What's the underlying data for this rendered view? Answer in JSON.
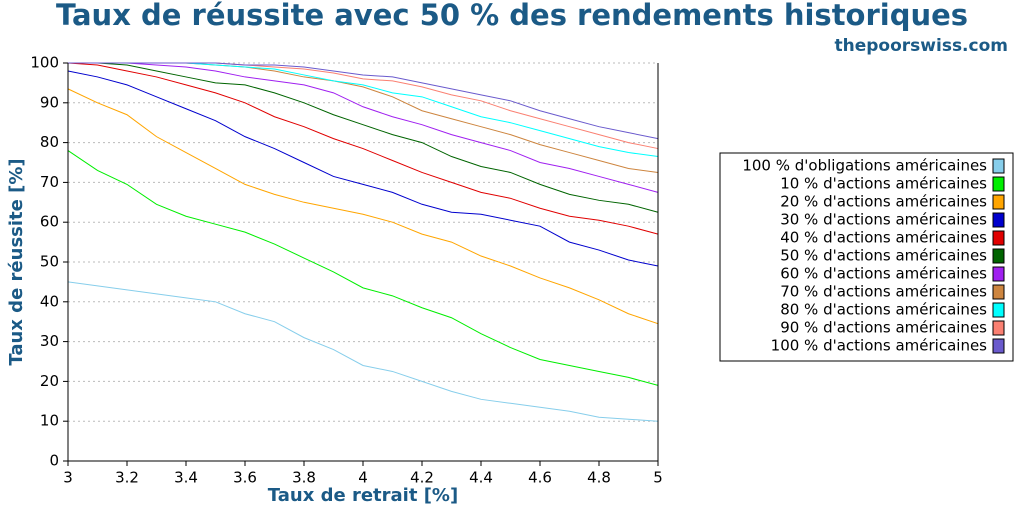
{
  "chart_data": {
    "type": "line",
    "title": "Taux de réussite avec 50 % des rendements historiques",
    "subtitle": "thepoorswiss.com",
    "x_label": "Taux de retrait [%]",
    "y_label": "Taux de réussite [%]",
    "x": [
      3,
      3.1,
      3.2,
      3.3,
      3.4,
      3.5,
      3.6,
      3.7,
      3.8,
      3.9,
      4,
      4.1,
      4.2,
      4.3,
      4.4,
      4.5,
      4.6,
      4.7,
      4.8,
      4.9,
      5
    ],
    "xlim": [
      3,
      5
    ],
    "xticks": [
      3,
      3.2,
      3.4,
      3.6,
      3.8,
      4,
      4.2,
      4.4,
      4.6,
      4.8,
      5
    ],
    "ylim": [
      0,
      100
    ],
    "yticks": [
      0,
      10,
      20,
      30,
      40,
      50,
      60,
      70,
      80,
      90,
      100
    ],
    "grid": true,
    "legend": "right",
    "series": [
      {
        "name": "100 % d'obligations américaines",
        "color": "#87ceeb",
        "values": [
          45,
          44,
          43,
          42,
          41,
          40,
          37,
          35,
          31,
          28,
          24,
          22.5,
          20,
          17.5,
          15.5,
          14.5,
          13.5,
          12.5,
          11,
          10.5,
          10
        ]
      },
      {
        "name": "10 % d'actions américaines",
        "color": "#00ee00",
        "values": [
          78,
          73,
          69.5,
          64.5,
          61.5,
          59.5,
          57.5,
          54.5,
          51,
          47.5,
          43.5,
          41.5,
          38.5,
          36,
          32,
          28.5,
          25.5,
          24,
          22.5,
          21,
          19
        ]
      },
      {
        "name": "20 % d'actions américaines",
        "color": "#ffa500",
        "values": [
          93.5,
          90,
          87,
          81.5,
          77.5,
          73.5,
          69.5,
          67,
          65,
          63.5,
          62,
          60,
          57,
          55,
          51.5,
          49,
          46,
          43.5,
          40.5,
          37,
          34.5
        ]
      },
      {
        "name": "30 % d'actions américaines",
        "color": "#0000cd",
        "values": [
          98,
          96.5,
          94.5,
          91.5,
          88.5,
          85.5,
          81.5,
          78.5,
          75,
          71.5,
          69.5,
          67.5,
          64.5,
          62.5,
          62,
          60.5,
          59,
          55,
          53,
          50.5,
          49
        ]
      },
      {
        "name": "40 % d'actions américaines",
        "color": "#e00000",
        "values": [
          100,
          99.5,
          98,
          96.5,
          94.5,
          92.5,
          90,
          86.5,
          84,
          81,
          78.5,
          75.5,
          72.5,
          70,
          67.5,
          66,
          63.5,
          61.5,
          60.5,
          59,
          57
        ]
      },
      {
        "name": "50 % d'actions américaines",
        "color": "#006400",
        "values": [
          100,
          100,
          99.5,
          98,
          96.5,
          95,
          94.5,
          92.5,
          90,
          87,
          84.5,
          82,
          80,
          76.5,
          74,
          72.5,
          69.5,
          67,
          65.5,
          64.5,
          62.5
        ]
      },
      {
        "name": "60 % d'actions américaines",
        "color": "#a020f0",
        "values": [
          100,
          100,
          100,
          99.5,
          99,
          98,
          96.5,
          95.5,
          94.5,
          92.5,
          89,
          86.5,
          84.5,
          82,
          80,
          78,
          75,
          73.5,
          71.5,
          69.5,
          67.5
        ]
      },
      {
        "name": "70 % d'actions américaines",
        "color": "#cd853f",
        "values": [
          100,
          100,
          100,
          100,
          100,
          99.5,
          99,
          98,
          96.5,
          95.5,
          94,
          91.5,
          88,
          86,
          84,
          82,
          79.5,
          77.5,
          75.5,
          73.5,
          72.5
        ]
      },
      {
        "name": "80 % d'actions américaines",
        "color": "#00ffff",
        "values": [
          100,
          100,
          100,
          100,
          100,
          99.5,
          99,
          98.5,
          97,
          95.5,
          94.5,
          92.5,
          91.5,
          89,
          86.5,
          85,
          83,
          81,
          79,
          77.5,
          76.5
        ]
      },
      {
        "name": "90 % d'actions américaines",
        "color": "#fa8072",
        "values": [
          100,
          100,
          100,
          100,
          100,
          100,
          99.5,
          99,
          98.5,
          97.5,
          96,
          95.5,
          94,
          92,
          90.5,
          88,
          86,
          84,
          82,
          80,
          78.5
        ]
      },
      {
        "name": "100 % d'actions américaines",
        "color": "#6a5acd",
        "values": [
          100,
          100,
          100,
          100,
          100,
          100,
          99.5,
          99.5,
          99,
          98,
          97,
          96.5,
          95,
          93.5,
          92,
          90.5,
          88,
          86,
          84,
          82.5,
          81
        ]
      }
    ]
  }
}
